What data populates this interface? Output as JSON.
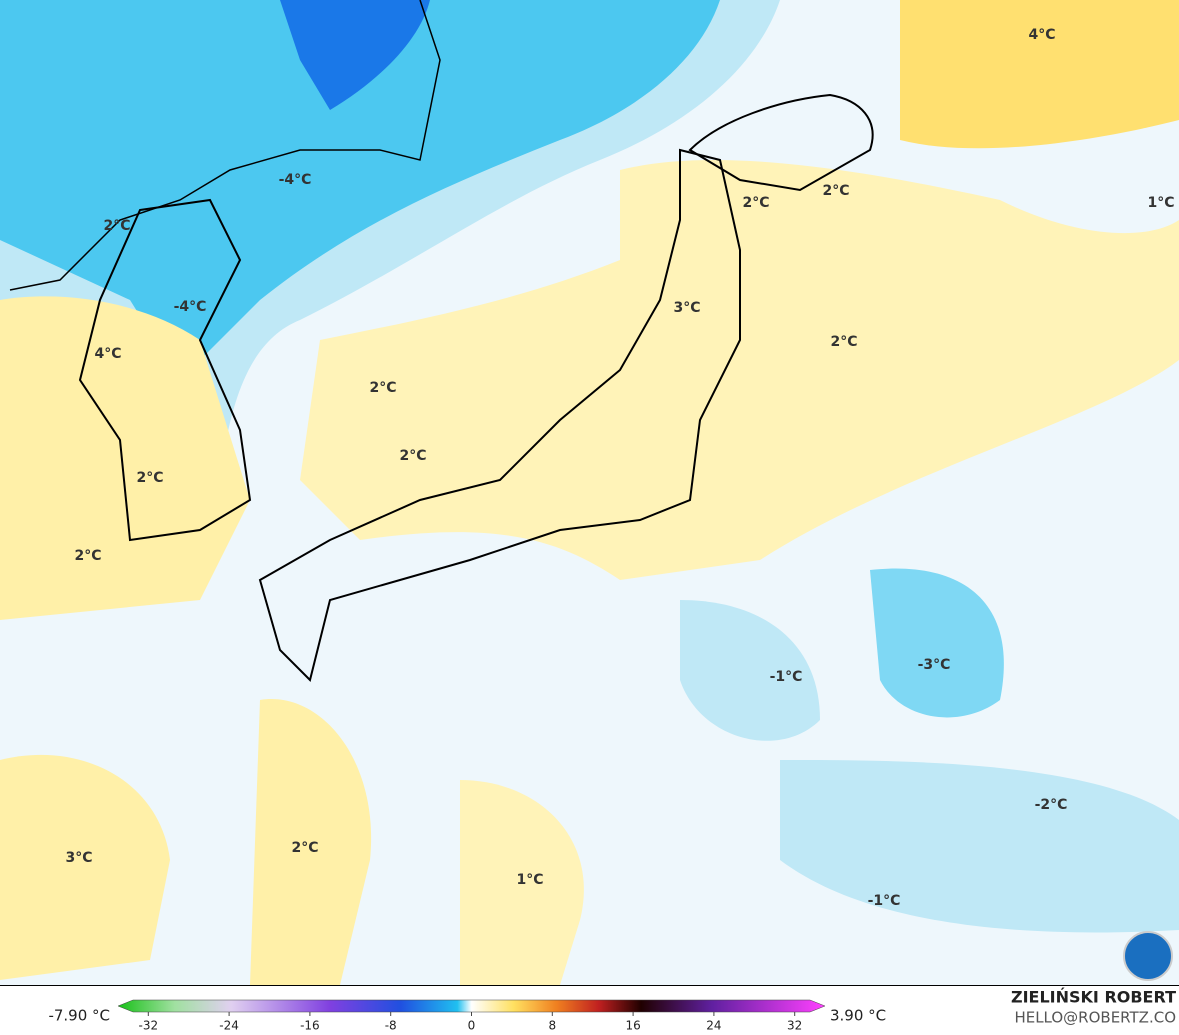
{
  "map": {
    "labels": [
      "4°C",
      "-4°C",
      "2°C",
      "2°C",
      "1°C",
      "2°C",
      "-4°C",
      "3°C",
      "4°C",
      "2°C",
      "2°C",
      "2°C",
      "2°C",
      "2°C",
      "-1°C",
      "-3°C",
      "-2°C",
      "3°C",
      "2°C",
      "1°C",
      "-1°C"
    ]
  },
  "colorbar": {
    "min_label": "-7.90 °C",
    "max_label": "3.90 °C",
    "ticks": [
      -32,
      -24,
      -16,
      -8,
      0,
      8,
      16,
      24,
      32
    ],
    "range": [
      -35,
      35
    ]
  },
  "credit": {
    "name": "ZIELIŃSKI ROBERT",
    "email": "HELLO@ROBERTZ.CO"
  }
}
